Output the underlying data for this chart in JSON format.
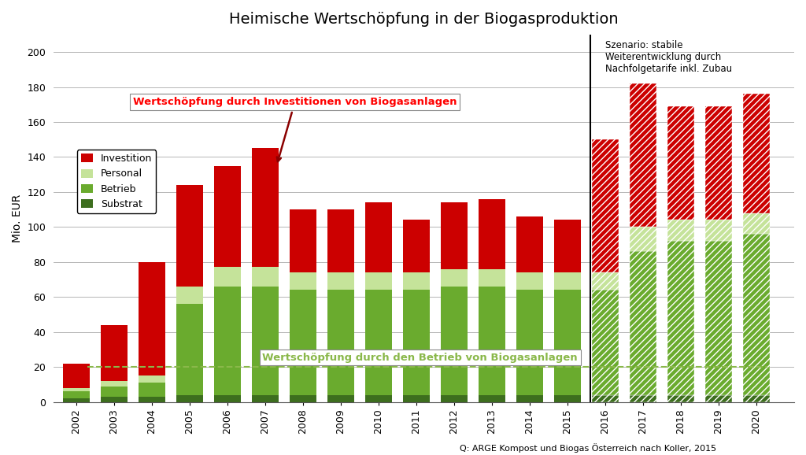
{
  "title": "Heimische Wertschöpfung in der Biogasproduktion",
  "ylabel": "Mio. EUR",
  "source_text": "Q: ARGE Kompost und Biogas Österreich nach Koller, 2015",
  "scenario_text": "Szenario: stabile\nWeiterentwicklung durch\nNachfolgetarife inkl. Zubau",
  "annotation_invest": "Wertschöpfung durch Investitionen von Biogasanlagen",
  "annotation_betrieb": "Wertschöpfung durch den Betrieb von Biogasanlagen",
  "years_hist": [
    2002,
    2003,
    2004,
    2005,
    2006,
    2007,
    2008,
    2009,
    2010,
    2011,
    2012,
    2013,
    2014,
    2015
  ],
  "years_proj": [
    2016,
    2017,
    2018,
    2019,
    2020
  ],
  "substrat_hist": [
    2,
    3,
    3,
    4,
    4,
    4,
    4,
    4,
    4,
    4,
    4,
    4,
    4,
    4
  ],
  "betrieb_hist": [
    4,
    6,
    8,
    52,
    62,
    62,
    60,
    60,
    60,
    60,
    62,
    62,
    60,
    60
  ],
  "personal_hist": [
    2,
    3,
    4,
    10,
    11,
    11,
    10,
    10,
    10,
    10,
    10,
    10,
    10,
    10
  ],
  "investition_hist": [
    14,
    32,
    65,
    58,
    58,
    68,
    36,
    36,
    40,
    30,
    38,
    40,
    32,
    30
  ],
  "substrat_proj": [
    4,
    4,
    4,
    4,
    4
  ],
  "betrieb_proj": [
    60,
    82,
    88,
    88,
    92
  ],
  "personal_proj": [
    10,
    14,
    12,
    12,
    12
  ],
  "investition_proj": [
    76,
    82,
    65,
    65,
    68
  ],
  "color_substrat": "#3d6e1e",
  "color_betrieb": "#6aab2e",
  "color_personal": "#c5e39a",
  "color_investition": "#cc0000",
  "ylim": [
    0,
    210
  ],
  "yticks": [
    0,
    20,
    40,
    60,
    80,
    100,
    120,
    140,
    160,
    180,
    200
  ],
  "divider_x": 2015.6,
  "legend_labels": [
    "Investition",
    "Personal",
    "Betrieb",
    "Substrat"
  ],
  "background_color": "#ffffff",
  "bar_width": 0.7,
  "xlim_left": 2001.4,
  "xlim_right": 2021.0
}
